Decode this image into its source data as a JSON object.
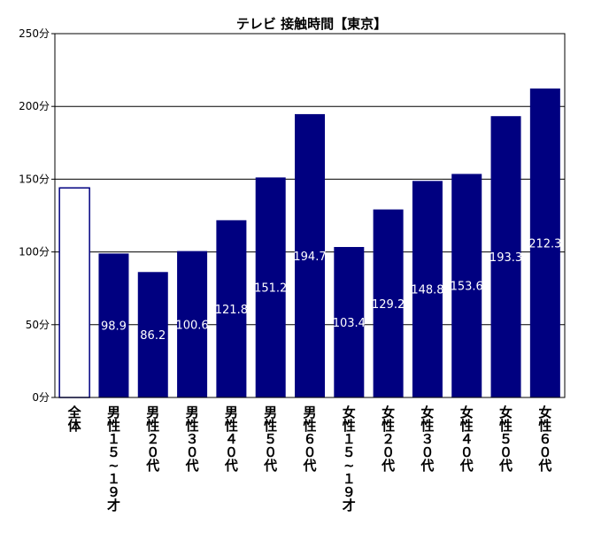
{
  "chart_data": {
    "type": "bar",
    "title": "テレビ 接触時間【東京】",
    "y_unit": "分",
    "ylim": [
      0,
      250
    ],
    "yticks": [
      0,
      50,
      100,
      150,
      200,
      250
    ],
    "ytick_labels": [
      "0分",
      "50分",
      "100分",
      "150分",
      "200分",
      "250分"
    ],
    "grid": true,
    "legend": "none",
    "categories": [
      "全体",
      "男性15~19才",
      "男性20代",
      "男性30代",
      "男性40代",
      "男性50代",
      "男性60代",
      "女性15~19才",
      "女性20代",
      "女性30代",
      "女性40代",
      "女性50代",
      "女性60代"
    ],
    "category_labels": [
      "全体",
      "男性１５~１９才",
      "男性２０代",
      "男性３０代",
      "男性４０代",
      "男性５０代",
      "男性６０代",
      "女性１５~１９才",
      "女性２０代",
      "女性３０代",
      "女性４０代",
      "女性５０代",
      "女性６０代"
    ],
    "values": [
      144.0,
      98.9,
      86.2,
      100.6,
      121.8,
      151.2,
      194.7,
      103.4,
      129.2,
      148.8,
      153.6,
      193.3,
      212.3
    ],
    "data_labels": [
      "",
      "98.9",
      "86.2",
      "100.6",
      "121.8",
      "151.2",
      "194.7",
      "103.4",
      "129.2",
      "148.8",
      "153.6",
      "193.3",
      "212.3"
    ],
    "colors": {
      "bar_fill": "#000080",
      "highlight_fill": "#ffffff",
      "highlight_stroke": "#000080",
      "data_label": "#ffffff",
      "axis": "#000000",
      "grid": "#000000"
    },
    "highlight_index": 0
  }
}
